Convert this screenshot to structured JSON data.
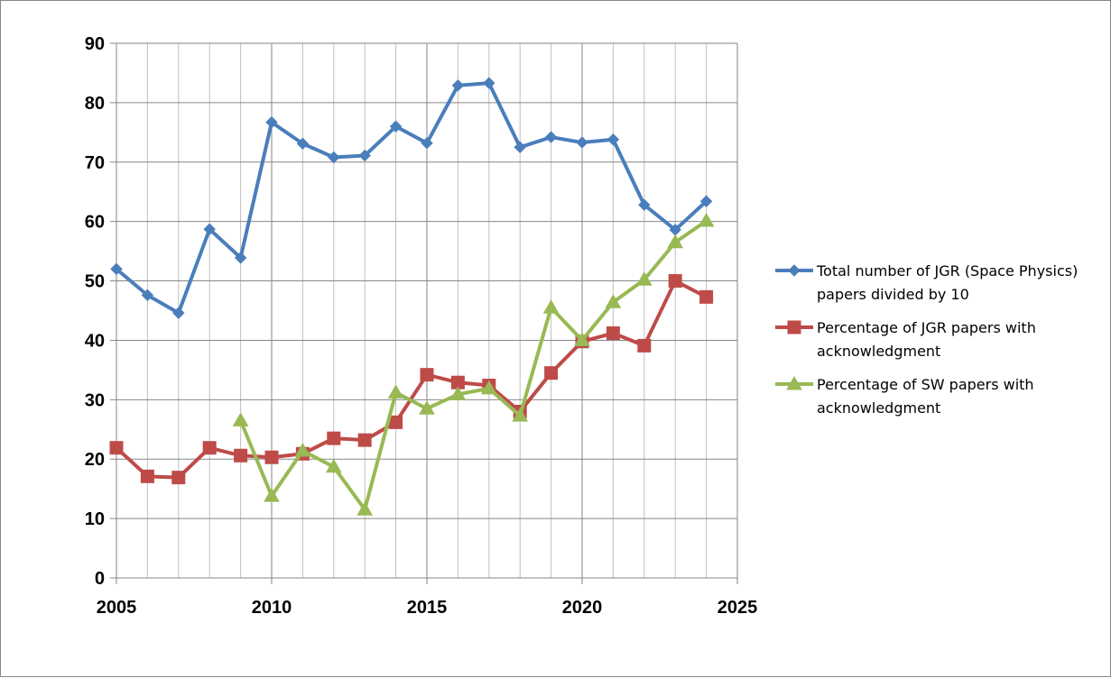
{
  "chart_data": {
    "type": "line",
    "title": "",
    "xlabel": "",
    "ylabel": "",
    "xlim": [
      2005,
      2025
    ],
    "ylim": [
      0,
      90
    ],
    "x_ticks": [
      2005,
      2010,
      2015,
      2020,
      2025
    ],
    "y_ticks": [
      0,
      10,
      20,
      30,
      40,
      50,
      60,
      70,
      80,
      90
    ],
    "x_tick_labels": [
      "2005",
      "2010",
      "2015",
      "2020",
      "2025"
    ],
    "y_tick_labels": [
      "0",
      "10",
      "20",
      "30",
      "40",
      "50",
      "60",
      "70",
      "80",
      "90"
    ],
    "grid": "on (major every 5 years, minor every year; horizontal every 10)",
    "legend_position": "right",
    "series": [
      {
        "name": "Total number of JGR (Space Physics) papers divided by 10",
        "legend_lines": [
          "Total number of JGR (Space Physics)",
          "papers divided by 10"
        ],
        "color": "#4a7ebb",
        "marker": "diamond",
        "points": [
          [
            2005,
            52.0
          ],
          [
            2006,
            47.6
          ],
          [
            2007,
            44.6
          ],
          [
            2008,
            58.7
          ],
          [
            2009,
            53.9
          ],
          [
            2010,
            76.7
          ],
          [
            2011,
            73.1
          ],
          [
            2012,
            70.8
          ],
          [
            2013,
            71.1
          ],
          [
            2014,
            76.0
          ],
          [
            2015,
            73.2
          ],
          [
            2016,
            82.9
          ],
          [
            2017,
            83.3
          ],
          [
            2018,
            72.5
          ],
          [
            2019,
            74.2
          ],
          [
            2020,
            73.3
          ],
          [
            2021,
            73.8
          ],
          [
            2022,
            62.8
          ],
          [
            2023,
            58.6
          ],
          [
            2024,
            63.4
          ]
        ]
      },
      {
        "name": "Percentage of JGR papers with acknowledgment",
        "legend_lines": [
          "Percentage of JGR papers with",
          "acknowledgment"
        ],
        "color": "#be4b48",
        "marker": "square",
        "points": [
          [
            2005,
            21.9
          ],
          [
            2006,
            17.1
          ],
          [
            2007,
            16.9
          ],
          [
            2008,
            21.9
          ],
          [
            2009,
            20.6
          ],
          [
            2010,
            20.3
          ],
          [
            2011,
            20.9
          ],
          [
            2012,
            23.5
          ],
          [
            2013,
            23.2
          ],
          [
            2014,
            26.2
          ],
          [
            2015,
            34.2
          ],
          [
            2016,
            32.9
          ],
          [
            2017,
            32.4
          ],
          [
            2018,
            28.0
          ],
          [
            2019,
            34.5
          ],
          [
            2020,
            39.8
          ],
          [
            2021,
            41.2
          ],
          [
            2022,
            39.1
          ],
          [
            2023,
            50.0
          ],
          [
            2024,
            47.3
          ]
        ]
      },
      {
        "name": "Percentage of SW papers with acknowledgment",
        "legend_lines": [
          "Percentage of SW papers with",
          "acknowledgment"
        ],
        "color": "#98b954",
        "marker": "triangle",
        "points": [
          [
            2009,
            26.5
          ],
          [
            2010,
            13.8
          ],
          [
            2011,
            21.4
          ],
          [
            2012,
            18.7
          ],
          [
            2013,
            11.5
          ],
          [
            2014,
            31.2
          ],
          [
            2015,
            28.5
          ],
          [
            2016,
            30.9
          ],
          [
            2017,
            31.9
          ],
          [
            2018,
            27.3
          ],
          [
            2019,
            45.5
          ],
          [
            2020,
            40.0
          ],
          [
            2021,
            46.4
          ],
          [
            2022,
            50.2
          ],
          [
            2023,
            56.5
          ],
          [
            2024,
            60.1
          ]
        ]
      }
    ]
  }
}
